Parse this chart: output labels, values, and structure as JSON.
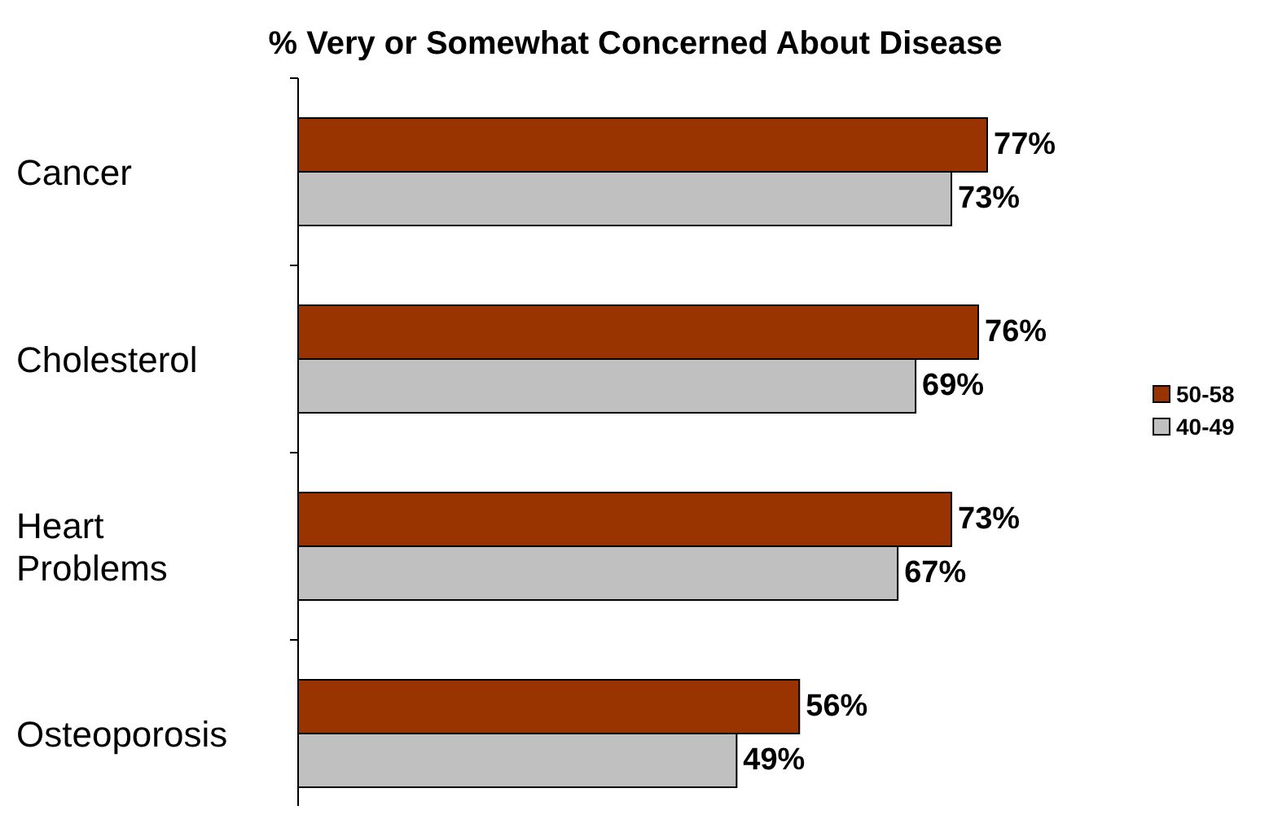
{
  "chart_data": {
    "type": "bar",
    "orientation": "horizontal",
    "title": "% Very or Somewhat Concerned About Disease",
    "categories": [
      "Cancer",
      "Cholesterol",
      "Heart Problems",
      "Osteoporosis"
    ],
    "series": [
      {
        "name": "50-58",
        "color": "#993300",
        "values": [
          77,
          76,
          73,
          56
        ],
        "value_labels": [
          "77%",
          "76%",
          "73%",
          "56%"
        ]
      },
      {
        "name": "40-49",
        "color": "#c0c0c0",
        "values": [
          73,
          69,
          67,
          49
        ],
        "value_labels": [
          "73%",
          "69%",
          "67%",
          "49%"
        ]
      }
    ],
    "legend": "right"
  }
}
